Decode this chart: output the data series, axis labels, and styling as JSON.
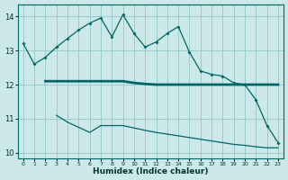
{
  "xlabel": "Humidex (Indice chaleur)",
  "bg_color": "#cce8e8",
  "grid_color": "#99cccc",
  "line_color": "#006666",
  "xlim": [
    -0.5,
    23.5
  ],
  "ylim": [
    9.85,
    14.35
  ],
  "yticks": [
    10,
    11,
    12,
    13,
    14
  ],
  "xticks": [
    0,
    1,
    2,
    3,
    4,
    5,
    6,
    7,
    8,
    9,
    10,
    11,
    12,
    13,
    14,
    15,
    16,
    17,
    18,
    19,
    20,
    21,
    22,
    23
  ],
  "line1_x": [
    0,
    1,
    2,
    3,
    4,
    5,
    6,
    7,
    8,
    9,
    10,
    11,
    12,
    13,
    14,
    15,
    16,
    17,
    18,
    19,
    20,
    21,
    22,
    23
  ],
  "line1_y": [
    13.2,
    12.6,
    12.8,
    13.1,
    13.35,
    13.6,
    13.8,
    13.95,
    13.4,
    14.05,
    13.5,
    13.1,
    13.25,
    13.5,
    13.7,
    12.95,
    12.4,
    12.3,
    12.25,
    12.05,
    12.0,
    11.55,
    10.8,
    10.3
  ],
  "line2_x": [
    2,
    3,
    4,
    5,
    6,
    7,
    8,
    9,
    10,
    11,
    12,
    13,
    14,
    15,
    16,
    17,
    18,
    19,
    20,
    21,
    22,
    23
  ],
  "line2_y": [
    12.1,
    12.1,
    12.1,
    12.1,
    12.1,
    12.1,
    12.1,
    12.1,
    12.05,
    12.02,
    12.0,
    12.0,
    12.0,
    12.0,
    12.0,
    12.0,
    12.0,
    12.0,
    12.0,
    12.0,
    12.0,
    12.0
  ],
  "line3_x": [
    3,
    4,
    5,
    6,
    7,
    8,
    9,
    10,
    11,
    12,
    13,
    14,
    15,
    16,
    17,
    18,
    19,
    20,
    21,
    22,
    23
  ],
  "line3_y": [
    11.1,
    10.9,
    10.75,
    10.6,
    10.8,
    10.8,
    10.8,
    10.73,
    10.66,
    10.6,
    10.55,
    10.5,
    10.45,
    10.4,
    10.35,
    10.3,
    10.25,
    10.22,
    10.18,
    10.15,
    10.15
  ]
}
